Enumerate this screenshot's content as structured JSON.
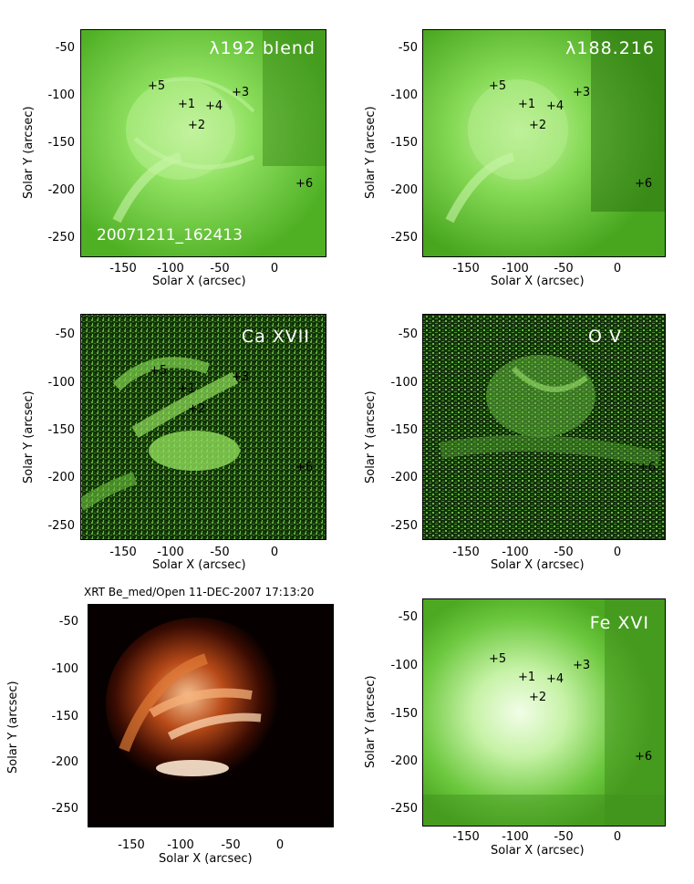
{
  "axis_titles": {
    "x": "Solar X (arcsec)",
    "y": "Solar Y (arcsec)"
  },
  "yticks": [
    "-50",
    "-100",
    "-150",
    "-200",
    "-250"
  ],
  "xticks": [
    "-150",
    "-100",
    "-50",
    "0"
  ],
  "panels": [
    {
      "label": "λ192 blend",
      "subtitle": "20071211_162413"
    },
    {
      "label": "λ188.216"
    },
    {
      "label": "Ca XVII"
    },
    {
      "label": "O V"
    },
    {
      "label": "",
      "title": "XRT Be_med/Open 11-DEC-2007 17:13:20"
    },
    {
      "label": "Fe XVI"
    }
  ],
  "markers": [
    "+1",
    "+2",
    "+3",
    "+4",
    "+5",
    "+6"
  ],
  "colors": {
    "green_base": "#5fc430",
    "green_bright": "#c8f5a8",
    "xrt_bg": "#0a0000",
    "xrt_glow": "#f2a060"
  }
}
